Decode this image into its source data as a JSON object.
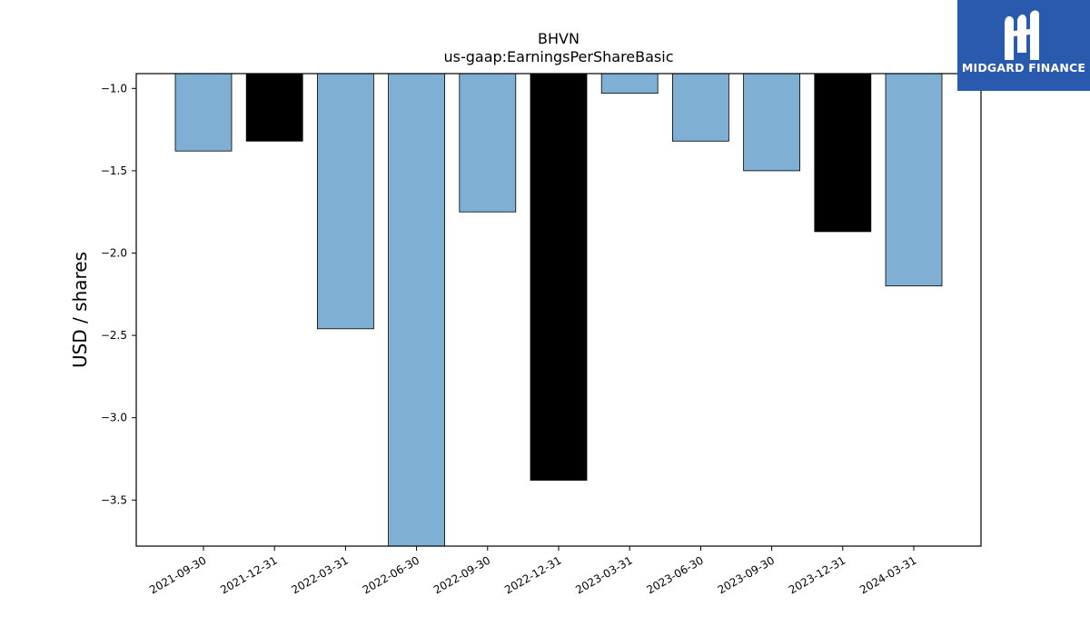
{
  "chart_data": {
    "type": "bar",
    "title": "BHVN",
    "subtitle": "us-gaap:EarningsPerShareBasic",
    "xlabel": "",
    "ylabel": "USD / shares",
    "categories": [
      "2021-09-30",
      "2021-12-31",
      "2022-03-31",
      "2022-06-30",
      "2022-09-30",
      "2022-12-31",
      "2023-03-31",
      "2023-06-30",
      "2023-09-30",
      "2023-12-31",
      "2024-03-31"
    ],
    "values": [
      -1.38,
      -1.32,
      -2.46,
      -3.78,
      -1.75,
      -3.38,
      -1.03,
      -1.32,
      -1.5,
      -1.87,
      -2.2
    ],
    "colors": [
      "#7fb0d3",
      "#000000",
      "#7fb0d3",
      "#7fb0d3",
      "#7fb0d3",
      "#000000",
      "#7fb0d3",
      "#7fb0d3",
      "#7fb0d3",
      "#000000",
      "#7fb0d3"
    ],
    "ylim": [
      -3.78,
      -0.91
    ],
    "yticks": [
      -1.0,
      -1.5,
      -2.0,
      -2.5,
      -3.0,
      -3.5
    ],
    "ytick_labels": [
      "−1.0",
      "−1.5",
      "−2.0",
      "−2.5",
      "−3.0",
      "−3.5"
    ],
    "grid": false,
    "legend": "none"
  },
  "logo": {
    "text": "MIDGARD FINANCE",
    "background": "#2a5aad"
  }
}
